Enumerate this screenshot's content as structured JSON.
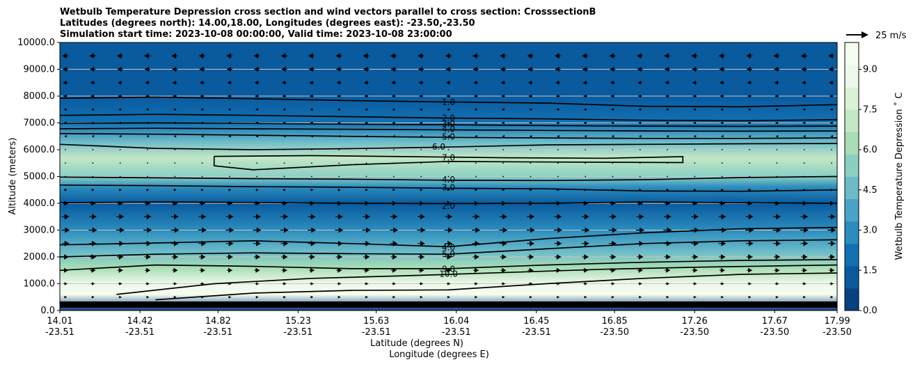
{
  "chart_data": {
    "type": "contour",
    "title_lines": [
      "Wetbulb Temperature Depression cross section and wind vectors parallel to cross section: CrosssectionB",
      "Latitudes (degrees north): 14.00,18.00, Longitudes (degrees east): -23.50,-23.50",
      "Simulation start time: 2023-10-08 00:00:00, Valid time: 2023-10-08 23:00:00"
    ],
    "ylabel": "Altitude (meters)",
    "xlabel_lat": "Latitude (degrees N)",
    "xlabel_lon": "Longitude (degrees E)",
    "ylim": [
      0,
      10000
    ],
    "y_ticks": [
      "0.0",
      "1000.0",
      "2000.0",
      "3000.0",
      "4000.0",
      "5000.0",
      "6000.0",
      "7000.0",
      "8000.0",
      "9000.0",
      "10000.0"
    ],
    "x_ticks": [
      {
        "lat": "14.01",
        "lon": "-23.51"
      },
      {
        "lat": "14.42",
        "lon": "-23.51"
      },
      {
        "lat": "14.82",
        "lon": "-23.51"
      },
      {
        "lat": "15.23",
        "lon": "-23.51"
      },
      {
        "lat": "15.63",
        "lon": "-23.51"
      },
      {
        "lat": "16.04",
        "lon": "-23.51"
      },
      {
        "lat": "16.45",
        "lon": "-23.51"
      },
      {
        "lat": "16.85",
        "lon": "-23.50"
      },
      {
        "lat": "17.26",
        "lon": "-23.50"
      },
      {
        "lat": "17.67",
        "lon": "-23.50"
      },
      {
        "lat": "17.99",
        "lon": "-23.50"
      }
    ],
    "colorbar": {
      "label": "Wetbulb Temperature Depression ˚ C",
      "range": [
        0,
        10
      ],
      "ticks": [
        "0.0",
        "1.5",
        "3.0",
        "4.5",
        "6.0",
        "7.5",
        "9.0"
      ],
      "colors": [
        "#084081",
        "#0a5a9e",
        "#1271b2",
        "#2b8cbe",
        "#4aa3c9",
        "#6cbbc8",
        "#8ccfc2",
        "#a8ddb5",
        "#c3e8c6",
        "#dbf1d5",
        "#eef8ea",
        "#f7fcf0"
      ]
    },
    "grid": "horizontal",
    "quiver_key": {
      "label": "25 m/s",
      "value": 25
    },
    "wind_rows": [
      {
        "alt": 9500,
        "dir": -1,
        "speed": 7
      },
      {
        "alt": 9000,
        "dir": -1,
        "speed": 6
      },
      {
        "alt": 8500,
        "dir": -1,
        "speed": 5
      },
      {
        "alt": 8000,
        "dir": -1,
        "speed": 4
      },
      {
        "alt": 7500,
        "dir": -1,
        "speed": 3
      },
      {
        "alt": 7000,
        "dir": -1,
        "speed": 3
      },
      {
        "alt": 6500,
        "dir": -1,
        "speed": 2
      },
      {
        "alt": 6000,
        "dir": -1,
        "speed": 1
      },
      {
        "alt": 5500,
        "dir": 1,
        "speed": 1
      },
      {
        "alt": 5000,
        "dir": 1,
        "speed": 1
      },
      {
        "alt": 4500,
        "dir": 1,
        "speed": 3
      },
      {
        "alt": 4000,
        "dir": 1,
        "speed": 6
      },
      {
        "alt": 3500,
        "dir": 1,
        "speed": 8
      },
      {
        "alt": 3000,
        "dir": 1,
        "speed": 9
      },
      {
        "alt": 2500,
        "dir": 1,
        "speed": 8
      },
      {
        "alt": 2000,
        "dir": 1,
        "speed": 7
      },
      {
        "alt": 1500,
        "dir": 1,
        "speed": 6
      },
      {
        "alt": 1000,
        "dir": 1,
        "speed": 4
      },
      {
        "alt": 500,
        "dir": 1,
        "speed": 3
      }
    ],
    "contours": [
      {
        "level": "1.0",
        "label_at": [
          16.0,
          7760
        ],
        "points": [
          [
            14.01,
            7920
          ],
          [
            14.5,
            7960
          ],
          [
            15.0,
            7900
          ],
          [
            15.5,
            7830
          ],
          [
            16.0,
            7780
          ],
          [
            16.5,
            7740
          ],
          [
            17.0,
            7620
          ],
          [
            17.5,
            7600
          ],
          [
            17.99,
            7680
          ]
        ]
      },
      {
        "level": "2.0",
        "label_at": [
          16.0,
          7180
        ],
        "points": [
          [
            14.01,
            7280
          ],
          [
            14.5,
            7320
          ],
          [
            15.0,
            7280
          ],
          [
            15.5,
            7230
          ],
          [
            16.0,
            7180
          ],
          [
            16.5,
            7150
          ],
          [
            17.0,
            7100
          ],
          [
            17.5,
            7080
          ],
          [
            17.99,
            7120
          ]
        ]
      },
      {
        "level": "3.0",
        "label_at": [
          16.0,
          6960
        ],
        "points": [
          [
            14.01,
            6980
          ],
          [
            14.5,
            7000
          ],
          [
            15.0,
            6980
          ],
          [
            15.5,
            6950
          ],
          [
            16.0,
            6930
          ],
          [
            16.5,
            6900
          ],
          [
            17.0,
            6880
          ],
          [
            17.5,
            6870
          ],
          [
            17.99,
            6880
          ]
        ]
      },
      {
        "level": "4.0",
        "label_at": [
          16.0,
          6760
        ],
        "points": [
          [
            14.01,
            6780
          ],
          [
            14.5,
            6800
          ],
          [
            15.0,
            6780
          ],
          [
            15.5,
            6760
          ],
          [
            16.0,
            6740
          ],
          [
            16.5,
            6720
          ],
          [
            17.0,
            6700
          ],
          [
            17.5,
            6690
          ],
          [
            17.99,
            6700
          ]
        ]
      },
      {
        "level": "5.0",
        "label_at": [
          16.0,
          6480
        ],
        "points": [
          [
            14.01,
            6600
          ],
          [
            14.5,
            6580
          ],
          [
            15.0,
            6540
          ],
          [
            15.5,
            6500
          ],
          [
            16.0,
            6460
          ],
          [
            16.5,
            6440
          ],
          [
            17.0,
            6420
          ],
          [
            17.5,
            6420
          ],
          [
            17.99,
            6440
          ]
        ]
      },
      {
        "level": "6.0",
        "label_at": [
          15.95,
          6100
        ],
        "points": [
          [
            14.01,
            6200
          ],
          [
            14.5,
            6050
          ],
          [
            15.0,
            6000
          ],
          [
            15.5,
            6040
          ],
          [
            16.0,
            6100
          ],
          [
            16.5,
            6180
          ],
          [
            17.0,
            6200
          ],
          [
            17.5,
            6220
          ],
          [
            17.99,
            6230
          ]
        ]
      },
      {
        "level": "7.0",
        "label_at": [
          16.0,
          5700
        ],
        "points": [
          [
            14.8,
            5750
          ],
          [
            15.3,
            5780
          ],
          [
            15.8,
            5740
          ],
          [
            16.3,
            5700
          ],
          [
            16.8,
            5680
          ],
          [
            17.2,
            5740
          ],
          [
            17.2,
            5520
          ],
          [
            16.5,
            5540
          ],
          [
            16.0,
            5560
          ],
          [
            15.5,
            5440
          ],
          [
            15.0,
            5250
          ],
          [
            14.8,
            5400
          ],
          [
            14.8,
            5750
          ]
        ]
      },
      {
        "level": "4.0",
        "label_at": [
          16.0,
          4880
        ],
        "points": [
          [
            14.01,
            4980
          ],
          [
            14.5,
            4950
          ],
          [
            15.0,
            4920
          ],
          [
            15.5,
            4900
          ],
          [
            16.0,
            4860
          ],
          [
            16.5,
            4850
          ],
          [
            17.0,
            4880
          ],
          [
            17.5,
            4960
          ],
          [
            17.99,
            5000
          ]
        ]
      },
      {
        "level": "3.0",
        "label_at": [
          16.0,
          4580
        ],
        "points": [
          [
            14.01,
            4680
          ],
          [
            14.5,
            4660
          ],
          [
            15.0,
            4620
          ],
          [
            15.5,
            4600
          ],
          [
            16.0,
            4560
          ],
          [
            16.5,
            4540
          ],
          [
            17.0,
            4460
          ],
          [
            17.5,
            4450
          ],
          [
            17.99,
            4500
          ]
        ]
      },
      {
        "level": "2.0",
        "label_at": [
          16.0,
          3900
        ],
        "points": [
          [
            14.01,
            4020
          ],
          [
            14.5,
            4050
          ],
          [
            15.0,
            4030
          ],
          [
            15.5,
            4000
          ],
          [
            16.0,
            3990
          ],
          [
            16.5,
            4000
          ],
          [
            17.0,
            4050
          ],
          [
            17.5,
            4020
          ],
          [
            17.99,
            4000
          ]
        ]
      },
      {
        "level": "4.0",
        "label_at": [
          16.0,
          2350
        ],
        "points": [
          [
            14.01,
            2450
          ],
          [
            14.5,
            2520
          ],
          [
            15.0,
            2600
          ],
          [
            15.5,
            2500
          ],
          [
            16.0,
            2380
          ],
          [
            16.5,
            2680
          ],
          [
            17.0,
            2900
          ],
          [
            17.5,
            3050
          ],
          [
            17.99,
            3100
          ]
        ]
      },
      {
        "level": "5.0",
        "label_at": [
          16.0,
          2100
        ],
        "points": [
          [
            14.01,
            2000
          ],
          [
            14.5,
            2100
          ],
          [
            15.0,
            2150
          ],
          [
            15.5,
            2120
          ],
          [
            16.0,
            2100
          ],
          [
            16.5,
            2300
          ],
          [
            17.0,
            2500
          ],
          [
            17.5,
            2600
          ],
          [
            17.99,
            2640
          ]
        ]
      },
      {
        "level": "9.0",
        "label_at": [
          16.0,
          1540
        ],
        "points": [
          [
            14.01,
            1500
          ],
          [
            14.5,
            1700
          ],
          [
            15.0,
            1650
          ],
          [
            15.5,
            1560
          ],
          [
            16.0,
            1560
          ],
          [
            16.5,
            1700
          ],
          [
            17.0,
            1800
          ],
          [
            17.5,
            1870
          ],
          [
            17.99,
            1900
          ]
        ]
      },
      {
        "level": "10.0",
        "label_at": [
          16.0,
          1370
        ],
        "points": [
          [
            14.3,
            600
          ],
          [
            14.8,
            1000
          ],
          [
            15.3,
            1200
          ],
          [
            15.8,
            1300
          ],
          [
            16.3,
            1420
          ],
          [
            16.8,
            1540
          ],
          [
            17.3,
            1620
          ],
          [
            17.99,
            1700
          ]
        ]
      },
      {
        "level": "",
        "label_at": null,
        "points": [
          [
            14.5,
            400
          ],
          [
            15.0,
            650
          ],
          [
            15.5,
            750
          ],
          [
            16.0,
            770
          ],
          [
            16.5,
            1000
          ],
          [
            17.0,
            1200
          ],
          [
            17.5,
            1350
          ],
          [
            17.99,
            1400
          ]
        ]
      }
    ]
  }
}
